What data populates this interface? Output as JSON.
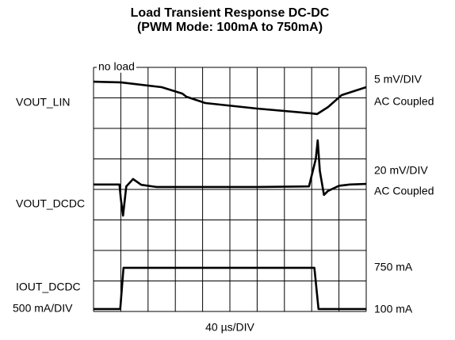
{
  "chart_data": {
    "type": "line",
    "title": "Load Transient Response DC-DC",
    "subtitle": "(PWM Mode: 100mA to 750mA)",
    "xlabel": "40 µs/DIV",
    "xlim": [
      0,
      10
    ],
    "ylim": [
      0,
      8
    ],
    "grid": true,
    "series": [
      {
        "name": "VOUT_LIN",
        "color": "#000000",
        "x": [
          0,
          1,
          2.5,
          3.26,
          3.4,
          4.1,
          6,
          8,
          8.2,
          8.6,
          9.1,
          10
        ],
        "values": [
          7.53,
          7.51,
          7.35,
          7.14,
          7.04,
          6.83,
          6.65,
          6.49,
          6.47,
          6.7,
          7.09,
          7.35
        ]
      },
      {
        "name": "VOUT_DCDC",
        "color": "#000000",
        "x": [
          0,
          0.95,
          1.0,
          1.08,
          1.2,
          1.45,
          1.75,
          2.3,
          4,
          6,
          7.9,
          8.15,
          8.22,
          8.3,
          8.45,
          8.6,
          9.0,
          9.4,
          10
        ],
        "values": [
          4.16,
          4.16,
          3.7,
          3.14,
          4.1,
          4.34,
          4.15,
          4.08,
          4.08,
          4.08,
          4.1,
          5.0,
          5.61,
          4.6,
          3.82,
          3.95,
          4.12,
          4.16,
          4.18
        ]
      },
      {
        "name": "IOUT_DCDC",
        "color": "#000000",
        "x": [
          0,
          0.98,
          1.1,
          2,
          5,
          7.9,
          8.1,
          8.25,
          9,
          10
        ],
        "values": [
          0.08,
          0.08,
          1.43,
          1.43,
          1.43,
          1.43,
          1.43,
          0.08,
          0.08,
          0.08
        ]
      }
    ],
    "annotations": [
      "no load",
      "5 mV/DIV",
      "AC Coupled",
      "20 mV/DIV",
      "AC Coupled",
      "750 mA",
      "100 mA",
      "500 mA/DIV"
    ]
  }
}
